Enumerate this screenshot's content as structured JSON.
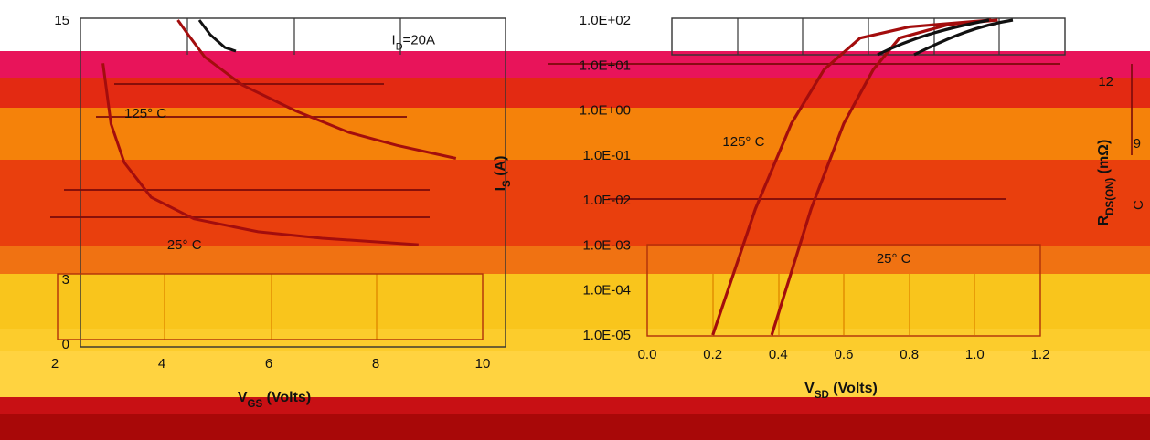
{
  "colors": {
    "bands": [
      "#ffffff",
      "#e8145a",
      "#e32a12",
      "#f5820a",
      "#e93f0d",
      "#f07212",
      "#f9c51c",
      "#fccc2c",
      "#ffd340",
      "#c81014",
      "#a80808"
    ],
    "curve": "#111111",
    "curve_overlay": "#a30d0d"
  },
  "chart_data": [
    {
      "type": "line",
      "title": "",
      "xlabel": "V",
      "xlabel_sub": "GS",
      "xlabel_tail": " (Volts)",
      "ylabel": "",
      "xlim": [
        2,
        10
      ],
      "ylim": [
        0,
        15
      ],
      "x_ticks": [
        "2",
        "4",
        "6",
        "8",
        "10"
      ],
      "y_ticks": [
        {
          "value": 15,
          "label": "15"
        },
        {
          "value": 3,
          "label": "3"
        },
        {
          "value": 0,
          "label": "0"
        }
      ],
      "annotations": [
        {
          "text": "I",
          "sub": "D",
          "tail": "=20A",
          "x": 8.3,
          "y": 14.1
        },
        {
          "text": "125° C",
          "x": 3.3,
          "y": 10.7
        },
        {
          "text": "25° C",
          "x": 4.1,
          "y": 4.6
        }
      ],
      "series": [
        {
          "values": [
            [
              4.3,
              15.0
            ],
            [
              4.5,
              14.3
            ],
            [
              4.8,
              13.3
            ],
            [
              5.5,
              12.0
            ],
            [
              6.5,
              10.8
            ],
            [
              7.5,
              9.8
            ],
            [
              8.4,
              9.2
            ],
            [
              9.5,
              8.6
            ]
          ]
        },
        {
          "values": [
            [
              2.9,
              13.0
            ],
            [
              3.05,
              10.2
            ],
            [
              3.3,
              8.4
            ],
            [
              3.8,
              6.8
            ],
            [
              4.6,
              5.8
            ],
            [
              5.8,
              5.2
            ],
            [
              7.0,
              4.9
            ],
            [
              8.8,
              4.6
            ]
          ]
        }
      ]
    },
    {
      "type": "line",
      "title": "",
      "xlabel": "V",
      "xlabel_sub": "SD",
      "xlabel_tail": " (Volts)",
      "ylabel": "I",
      "ylabel_sub": "S",
      "ylabel_tail": " (A)",
      "ylog": true,
      "xlim": [
        0.0,
        1.2
      ],
      "ylim_exp": [
        -5,
        2
      ],
      "x_ticks": [
        "0.0",
        "0.2",
        "0.4",
        "0.6",
        "0.8",
        "1.0",
        "1.2"
      ],
      "y_ticks": [
        "1.0E+02",
        "1.0E+01",
        "1.0E+00",
        "1.0E-01",
        "1.0E-02",
        "1.0E-03",
        "1.0E-04",
        "1.0E-05"
      ],
      "annotations": [
        {
          "text": "125° C",
          "x": 0.23,
          "y_exp": -0.7
        },
        {
          "text": "25° C",
          "x": 0.7,
          "y_exp": -3.3
        }
      ],
      "series": [
        {
          "values": [
            [
              0.2,
              -5.0
            ],
            [
              0.33,
              -2.2
            ],
            [
              0.44,
              -0.3
            ],
            [
              0.54,
              0.9
            ],
            [
              0.65,
              1.6
            ],
            [
              0.8,
              1.85
            ],
            [
              1.05,
              2.0
            ]
          ]
        },
        {
          "values": [
            [
              0.38,
              -5.0
            ],
            [
              0.5,
              -2.2
            ],
            [
              0.6,
              -0.3
            ],
            [
              0.69,
              0.9
            ],
            [
              0.77,
              1.6
            ],
            [
              0.92,
              1.9
            ],
            [
              1.07,
              2.0
            ]
          ]
        }
      ]
    }
  ],
  "partial_ylabel": {
    "text": "R",
    "sub": "DS(ON)",
    "tail": " (mΩ)"
  },
  "partial_ticks": [
    "12",
    "9"
  ],
  "edge_glyph": "C"
}
